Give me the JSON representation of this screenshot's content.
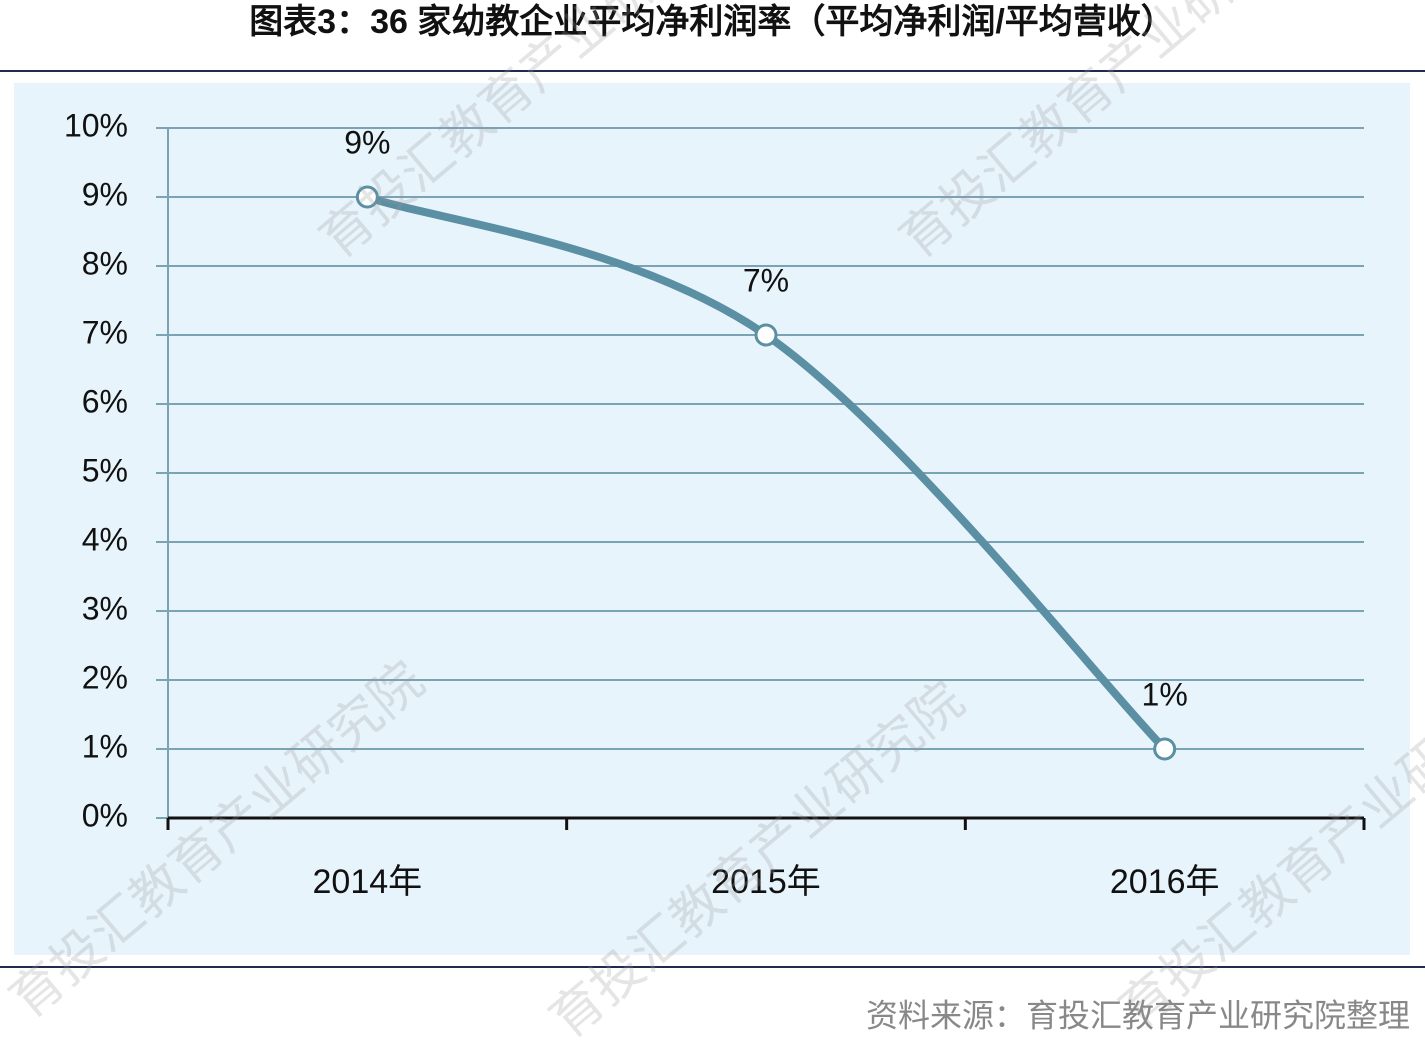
{
  "chart_data": {
    "type": "line",
    "title": "图表3：36 家幼教企业平均净利润率（平均净利润/平均营收）",
    "categories": [
      "2014年",
      "2015年",
      "2016年"
    ],
    "values": [
      9,
      7,
      1
    ],
    "value_labels": [
      "9%",
      "7%",
      "1%"
    ],
    "color": "#5b8fa3",
    "ylim": [
      0,
      10
    ],
    "yticks": [
      {
        "value": 0,
        "label": "0%"
      },
      {
        "value": 1,
        "label": "1%"
      },
      {
        "value": 2,
        "label": "2%"
      },
      {
        "value": 3,
        "label": "3%"
      },
      {
        "value": 4,
        "label": "4%"
      },
      {
        "value": 5,
        "label": "5%"
      },
      {
        "value": 6,
        "label": "6%"
      },
      {
        "value": 7,
        "label": "7%"
      },
      {
        "value": 8,
        "label": "8%"
      },
      {
        "value": 9,
        "label": "9%"
      },
      {
        "value": 10,
        "label": "10%"
      }
    ],
    "grid": true,
    "smooth": true,
    "source": "资料来源：育投汇教育产业研究院整理",
    "watermark": "育投汇教育产业研究院"
  }
}
